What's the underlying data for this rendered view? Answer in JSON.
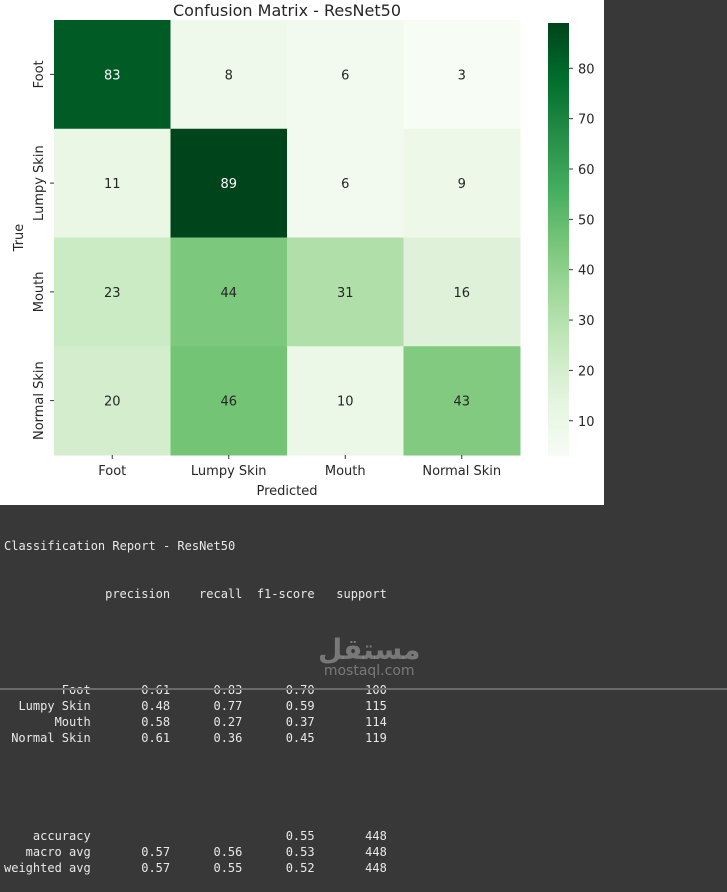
{
  "chart_data": {
    "type": "heatmap",
    "title": "Confusion Matrix - ResNet50",
    "xlabel": "Predicted",
    "ylabel": "True",
    "x_categories": [
      "Foot",
      "Lumpy Skin",
      "Mouth",
      "Normal Skin"
    ],
    "y_categories": [
      "Foot",
      "Lumpy Skin",
      "Mouth",
      "Normal Skin"
    ],
    "values": [
      [
        83,
        8,
        6,
        3
      ],
      [
        11,
        89,
        6,
        9
      ],
      [
        23,
        44,
        31,
        16
      ],
      [
        20,
        46,
        10,
        43
      ]
    ],
    "colormap": "Greens",
    "colorbar": {
      "range": [
        3,
        89
      ],
      "ticks": [
        10,
        20,
        30,
        40,
        50,
        60,
        70,
        80
      ]
    }
  },
  "report": {
    "title": "Classification Report - ResNet50",
    "headers": [
      "precision",
      "recall",
      "f1-score",
      "support"
    ],
    "rows": [
      {
        "name": "Foot",
        "cells": [
          "0.61",
          "0.83",
          "0.70",
          "100"
        ]
      },
      {
        "name": "Lumpy Skin",
        "cells": [
          "0.48",
          "0.77",
          "0.59",
          "115"
        ]
      },
      {
        "name": "Mouth",
        "cells": [
          "0.58",
          "0.27",
          "0.37",
          "114"
        ]
      },
      {
        "name": "Normal Skin",
        "cells": [
          "0.61",
          "0.36",
          "0.45",
          "119"
        ]
      }
    ],
    "summary": [
      {
        "name": "accuracy",
        "cells": [
          "",
          "",
          "0.55",
          "448"
        ]
      },
      {
        "name": "macro avg",
        "cells": [
          "0.57",
          "0.56",
          "0.53",
          "448"
        ]
      },
      {
        "name": "weighted avg",
        "cells": [
          "0.57",
          "0.55",
          "0.52",
          "448"
        ]
      }
    ]
  },
  "watermark": {
    "arabic": "مستقل",
    "latin": "mostaql.com"
  }
}
